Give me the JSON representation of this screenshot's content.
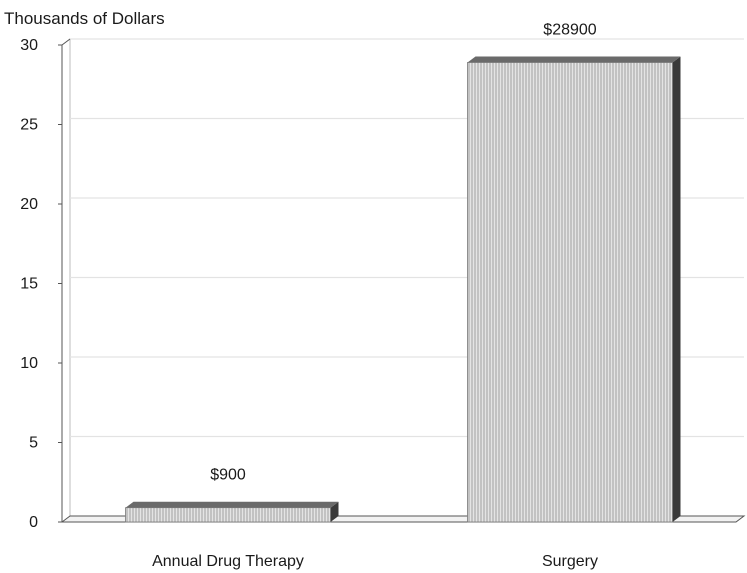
{
  "chart_data": {
    "type": "bar",
    "title": "",
    "ylabel": "Thousands of Dollars",
    "xlabel": "",
    "categories": [
      "Annual Drug Therapy",
      "Surgery"
    ],
    "values": [
      0.9,
      28.9
    ],
    "data_labels": [
      "$900",
      "$28900"
    ],
    "ylim": [
      0,
      30
    ],
    "yticks": [
      0,
      5,
      10,
      15,
      20,
      25,
      30
    ],
    "grid": true,
    "legend": "none",
    "style": "3d",
    "colors": {
      "bar_face": "#d9d9d9",
      "bar_side": "#3a3a3a",
      "bar_top": "#6a6a6a",
      "grid": "#e3e3e3",
      "axis": "#555555"
    }
  }
}
